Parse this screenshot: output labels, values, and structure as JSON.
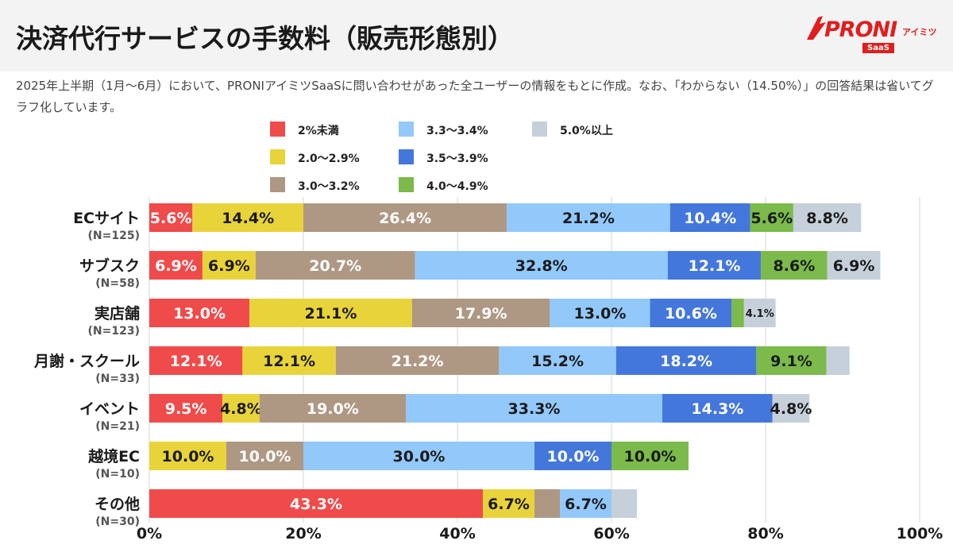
{
  "header": {
    "title": "決済代行サービスの手数料（販売形態別）",
    "logo_text": "PRONI",
    "logo_sub": "アイミツ",
    "logo_tag": "SaaS"
  },
  "note": "2025年上半期（1月〜6月）において、PRONIアイミツSaaSに問い合わせがあった全ユーザーの情報をもとに作成。なお、「わからない（14.50%）」の回答結果は省いてグラフ化しています。",
  "chart_data": {
    "type": "bar",
    "orientation": "horizontal",
    "stacked": true,
    "xlim": [
      0,
      100
    ],
    "x_ticks": [
      "0%",
      "20%",
      "40%",
      "60%",
      "80%",
      "100%"
    ],
    "grid": true,
    "legend_placement": "top",
    "categories": [
      {
        "label": "ECサイト",
        "n": "(N=125)"
      },
      {
        "label": "サブスク",
        "n": "(N=58)"
      },
      {
        "label": "実店舗",
        "n": "(N=123)"
      },
      {
        "label": "月謝・スクール",
        "n": "(N=33)"
      },
      {
        "label": "イベント",
        "n": "(N=21)"
      },
      {
        "label": "越境EC",
        "n": "(N=10)"
      },
      {
        "label": "その他",
        "n": "(N=30)"
      }
    ],
    "series": [
      {
        "name": "2%未満",
        "color": "#f04b4b",
        "text_color": "#ffffff",
        "values": [
          5.6,
          6.9,
          13.0,
          12.1,
          9.5,
          0,
          43.3
        ],
        "labels": [
          "5.6%",
          "6.9%",
          "13.0%",
          "12.1%",
          "9.5%",
          "",
          "43.3%"
        ]
      },
      {
        "name": "2.0〜2.9%",
        "color": "#e8d43a",
        "text_color": "#1a1a1a",
        "values": [
          14.4,
          6.9,
          21.1,
          12.1,
          4.8,
          10.0,
          6.7
        ],
        "labels": [
          "14.4%",
          "6.9%",
          "21.1%",
          "12.1%",
          "4.8%",
          "10.0%",
          "6.7%"
        ]
      },
      {
        "name": "3.0〜3.2%",
        "color": "#ae9883",
        "text_color": "#ffffff",
        "values": [
          26.4,
          20.7,
          17.9,
          21.2,
          19.0,
          10.0,
          3.3
        ],
        "labels": [
          "26.4%",
          "20.7%",
          "17.9%",
          "21.2%",
          "19.0%",
          "10.0%",
          ""
        ]
      },
      {
        "name": "3.3〜3.4%",
        "color": "#93c8fb",
        "text_color": "#1a1a1a",
        "values": [
          21.2,
          32.8,
          13.0,
          15.2,
          33.3,
          30.0,
          6.7
        ],
        "labels": [
          "21.2%",
          "32.8%",
          "13.0%",
          "15.2%",
          "33.3%",
          "30.0%",
          "6.7%"
        ]
      },
      {
        "name": "3.5〜3.9%",
        "color": "#4477dc",
        "text_color": "#ffffff",
        "values": [
          10.4,
          12.1,
          10.6,
          18.2,
          14.3,
          10.0,
          0
        ],
        "labels": [
          "10.4%",
          "12.1%",
          "10.6%",
          "18.2%",
          "14.3%",
          "10.0%",
          ""
        ]
      },
      {
        "name": "4.0〜4.9%",
        "color": "#7bba4b",
        "text_color": "#1a1a1a",
        "values": [
          5.6,
          8.6,
          1.6,
          9.1,
          0,
          10.0,
          0
        ],
        "labels": [
          "5.6%",
          "8.6%",
          "",
          "9.1%",
          "",
          "10.0%",
          ""
        ]
      },
      {
        "name": "5.0%以上",
        "color": "#c6d0db",
        "text_color": "#1a1a1a",
        "values": [
          8.8,
          6.9,
          4.1,
          3.0,
          4.8,
          0,
          3.3
        ],
        "labels": [
          "8.8%",
          "6.9%",
          "4.1%",
          "",
          "4.8%",
          "",
          ""
        ]
      }
    ]
  }
}
